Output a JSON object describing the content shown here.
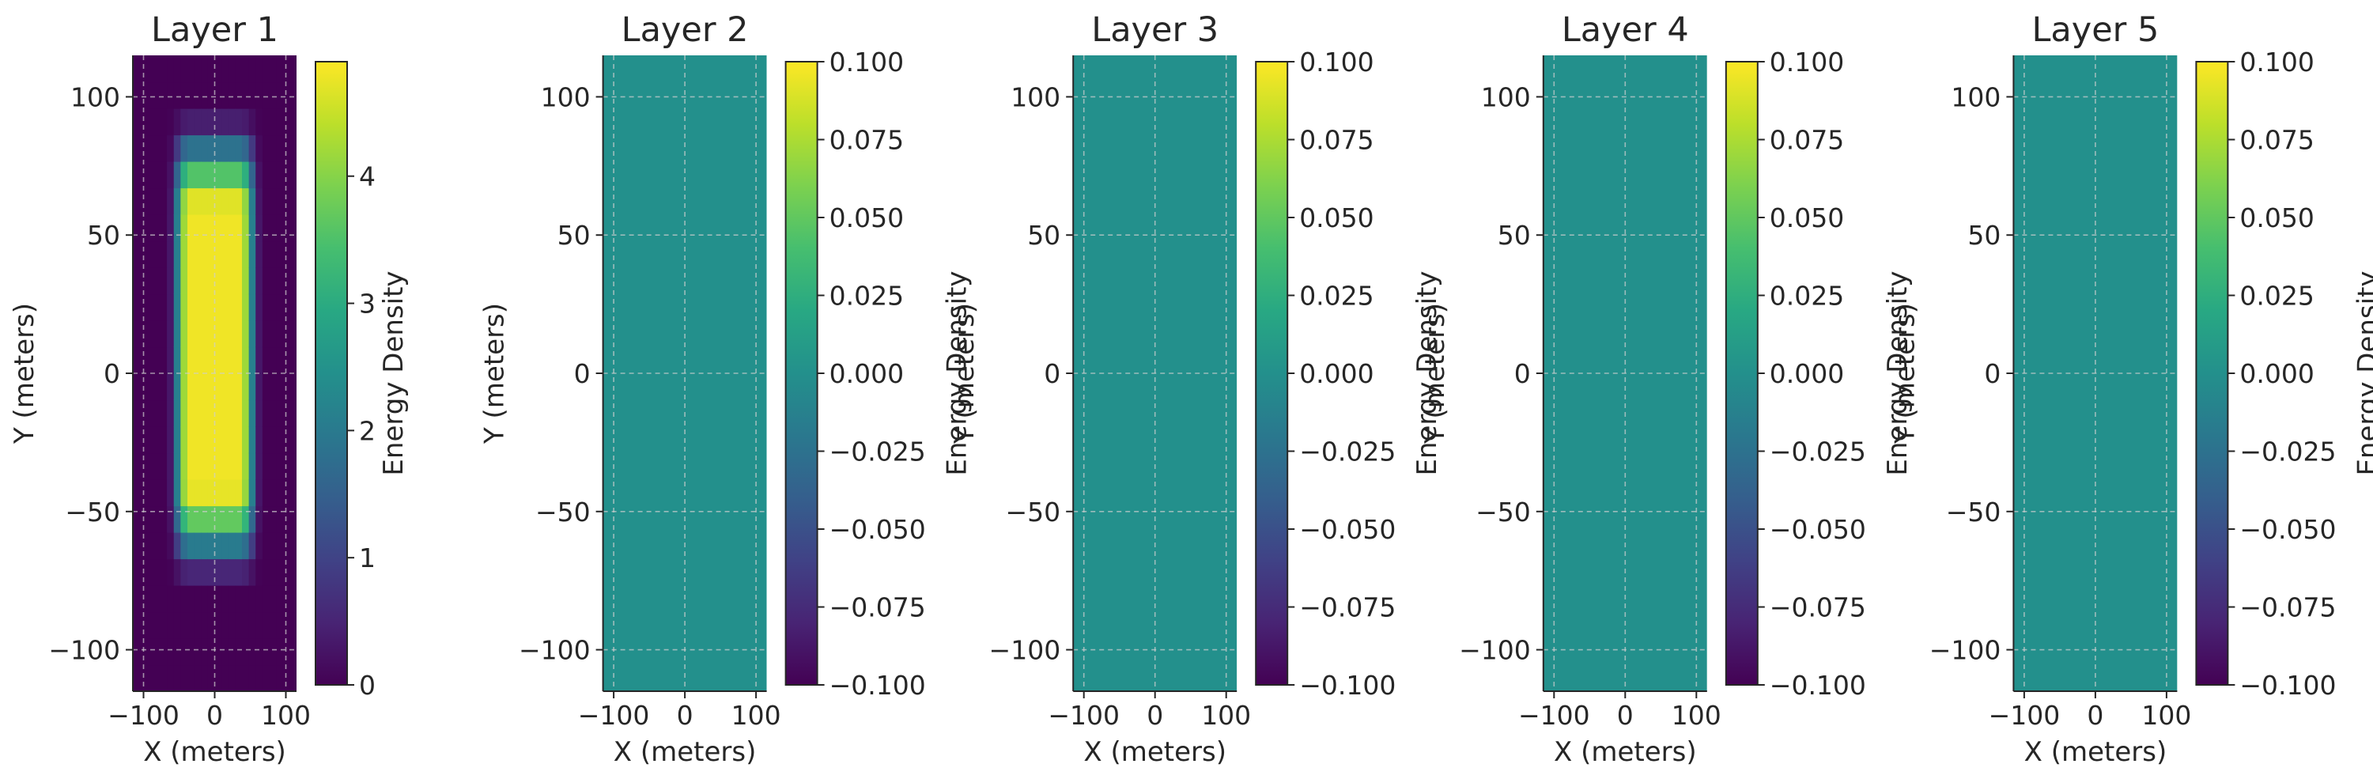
{
  "chart_data": [
    {
      "type": "heatmap",
      "title": "Layer 1",
      "xlabel": "X (meters)",
      "ylabel": "Y (meters)",
      "colorbar_label": "Energy Density",
      "colormap": "viridis",
      "xlim": [
        -115,
        115
      ],
      "ylim": [
        -115,
        115
      ],
      "xticks": [
        -100,
        0,
        100
      ],
      "xtick_labels": [
        "−100",
        "0",
        "100"
      ],
      "yticks": [
        100,
        50,
        0,
        -50,
        -100
      ],
      "ytick_labels": [
        "100",
        "50",
        "0",
        "−50",
        "−100"
      ],
      "grid": true,
      "color_range": [
        0,
        4.9
      ],
      "colorbar_ticks": [
        0,
        1,
        2,
        3,
        4
      ],
      "colorbar_tick_labels": [
        "0",
        "1",
        "2",
        "3",
        "4"
      ],
      "field": {
        "shape": "smooth plateau",
        "peak_value": 4.8,
        "x_extent": [
          -45,
          45
        ],
        "y_extent": [
          -58,
          85
        ]
      }
    },
    {
      "type": "heatmap",
      "title": "Layer 2",
      "xlabel": "X (meters)",
      "ylabel": "Y (meters)",
      "colorbar_label": "Energy Density",
      "colormap": "viridis",
      "xlim": [
        -115,
        115
      ],
      "ylim": [
        -115,
        115
      ],
      "xticks": [
        -100,
        0,
        100
      ],
      "xtick_labels": [
        "−100",
        "0",
        "100"
      ],
      "yticks": [
        100,
        50,
        0,
        -50,
        -100
      ],
      "ytick_labels": [
        "100",
        "50",
        "0",
        "−50",
        "−100"
      ],
      "grid": true,
      "color_range": [
        -0.1,
        0.1
      ],
      "colorbar_ticks": [
        0.1,
        0.075,
        0.05,
        0.025,
        0,
        -0.025,
        -0.05,
        -0.075,
        -0.1
      ],
      "colorbar_tick_labels": [
        "0.100",
        "0.075",
        "0.050",
        "0.025",
        "0.000",
        "−0.025",
        "−0.050",
        "−0.075",
        "−0.100"
      ],
      "field": {
        "shape": "uniform",
        "value": 0
      }
    },
    {
      "type": "heatmap",
      "title": "Layer 3",
      "xlabel": "X (meters)",
      "ylabel": "Y (meters)",
      "colorbar_label": "Energy Density",
      "colormap": "viridis",
      "xlim": [
        -115,
        115
      ],
      "ylim": [
        -115,
        115
      ],
      "xticks": [
        -100,
        0,
        100
      ],
      "xtick_labels": [
        "−100",
        "0",
        "100"
      ],
      "yticks": [
        100,
        50,
        0,
        -50,
        -100
      ],
      "ytick_labels": [
        "100",
        "50",
        "0",
        "−50",
        "−100"
      ],
      "grid": true,
      "color_range": [
        -0.1,
        0.1
      ],
      "colorbar_ticks": [
        0.1,
        0.075,
        0.05,
        0.025,
        0,
        -0.025,
        -0.05,
        -0.075,
        -0.1
      ],
      "colorbar_tick_labels": [
        "0.100",
        "0.075",
        "0.050",
        "0.025",
        "0.000",
        "−0.025",
        "−0.050",
        "−0.075",
        "−0.100"
      ],
      "field": {
        "shape": "uniform",
        "value": 0
      }
    },
    {
      "type": "heatmap",
      "title": "Layer 4",
      "xlabel": "X (meters)",
      "ylabel": "Y (meters)",
      "colorbar_label": "Energy Density",
      "colormap": "viridis",
      "xlim": [
        -115,
        115
      ],
      "ylim": [
        -115,
        115
      ],
      "xticks": [
        -100,
        0,
        100
      ],
      "xtick_labels": [
        "−100",
        "0",
        "100"
      ],
      "yticks": [
        100,
        50,
        0,
        -50,
        -100
      ],
      "ytick_labels": [
        "100",
        "50",
        "0",
        "−50",
        "−100"
      ],
      "grid": true,
      "color_range": [
        -0.1,
        0.1
      ],
      "colorbar_ticks": [
        0.1,
        0.075,
        0.05,
        0.025,
        0,
        -0.025,
        -0.05,
        -0.075,
        -0.1
      ],
      "colorbar_tick_labels": [
        "0.100",
        "0.075",
        "0.050",
        "0.025",
        "0.000",
        "−0.025",
        "−0.050",
        "−0.075",
        "−0.100"
      ],
      "field": {
        "shape": "uniform",
        "value": 0
      }
    },
    {
      "type": "heatmap",
      "title": "Layer 5",
      "xlabel": "X (meters)",
      "ylabel": "Y (meters)",
      "colorbar_label": "Energy Density",
      "colormap": "viridis",
      "xlim": [
        -115,
        115
      ],
      "ylim": [
        -115,
        115
      ],
      "xticks": [
        -100,
        0,
        100
      ],
      "xtick_labels": [
        "−100",
        "0",
        "100"
      ],
      "yticks": [
        100,
        50,
        0,
        -50,
        -100
      ],
      "ytick_labels": [
        "100",
        "50",
        "0",
        "−50",
        "−100"
      ],
      "grid": true,
      "color_range": [
        -0.1,
        0.1
      ],
      "colorbar_ticks": [
        0.1,
        0.075,
        0.05,
        0.025,
        0,
        -0.025,
        -0.05,
        -0.075,
        -0.1
      ],
      "colorbar_tick_labels": [
        "0.100",
        "0.075",
        "0.050",
        "0.025",
        "0.000",
        "−0.025",
        "−0.050",
        "−0.075",
        "−0.100"
      ],
      "field": {
        "shape": "uniform",
        "value": 0
      }
    }
  ]
}
